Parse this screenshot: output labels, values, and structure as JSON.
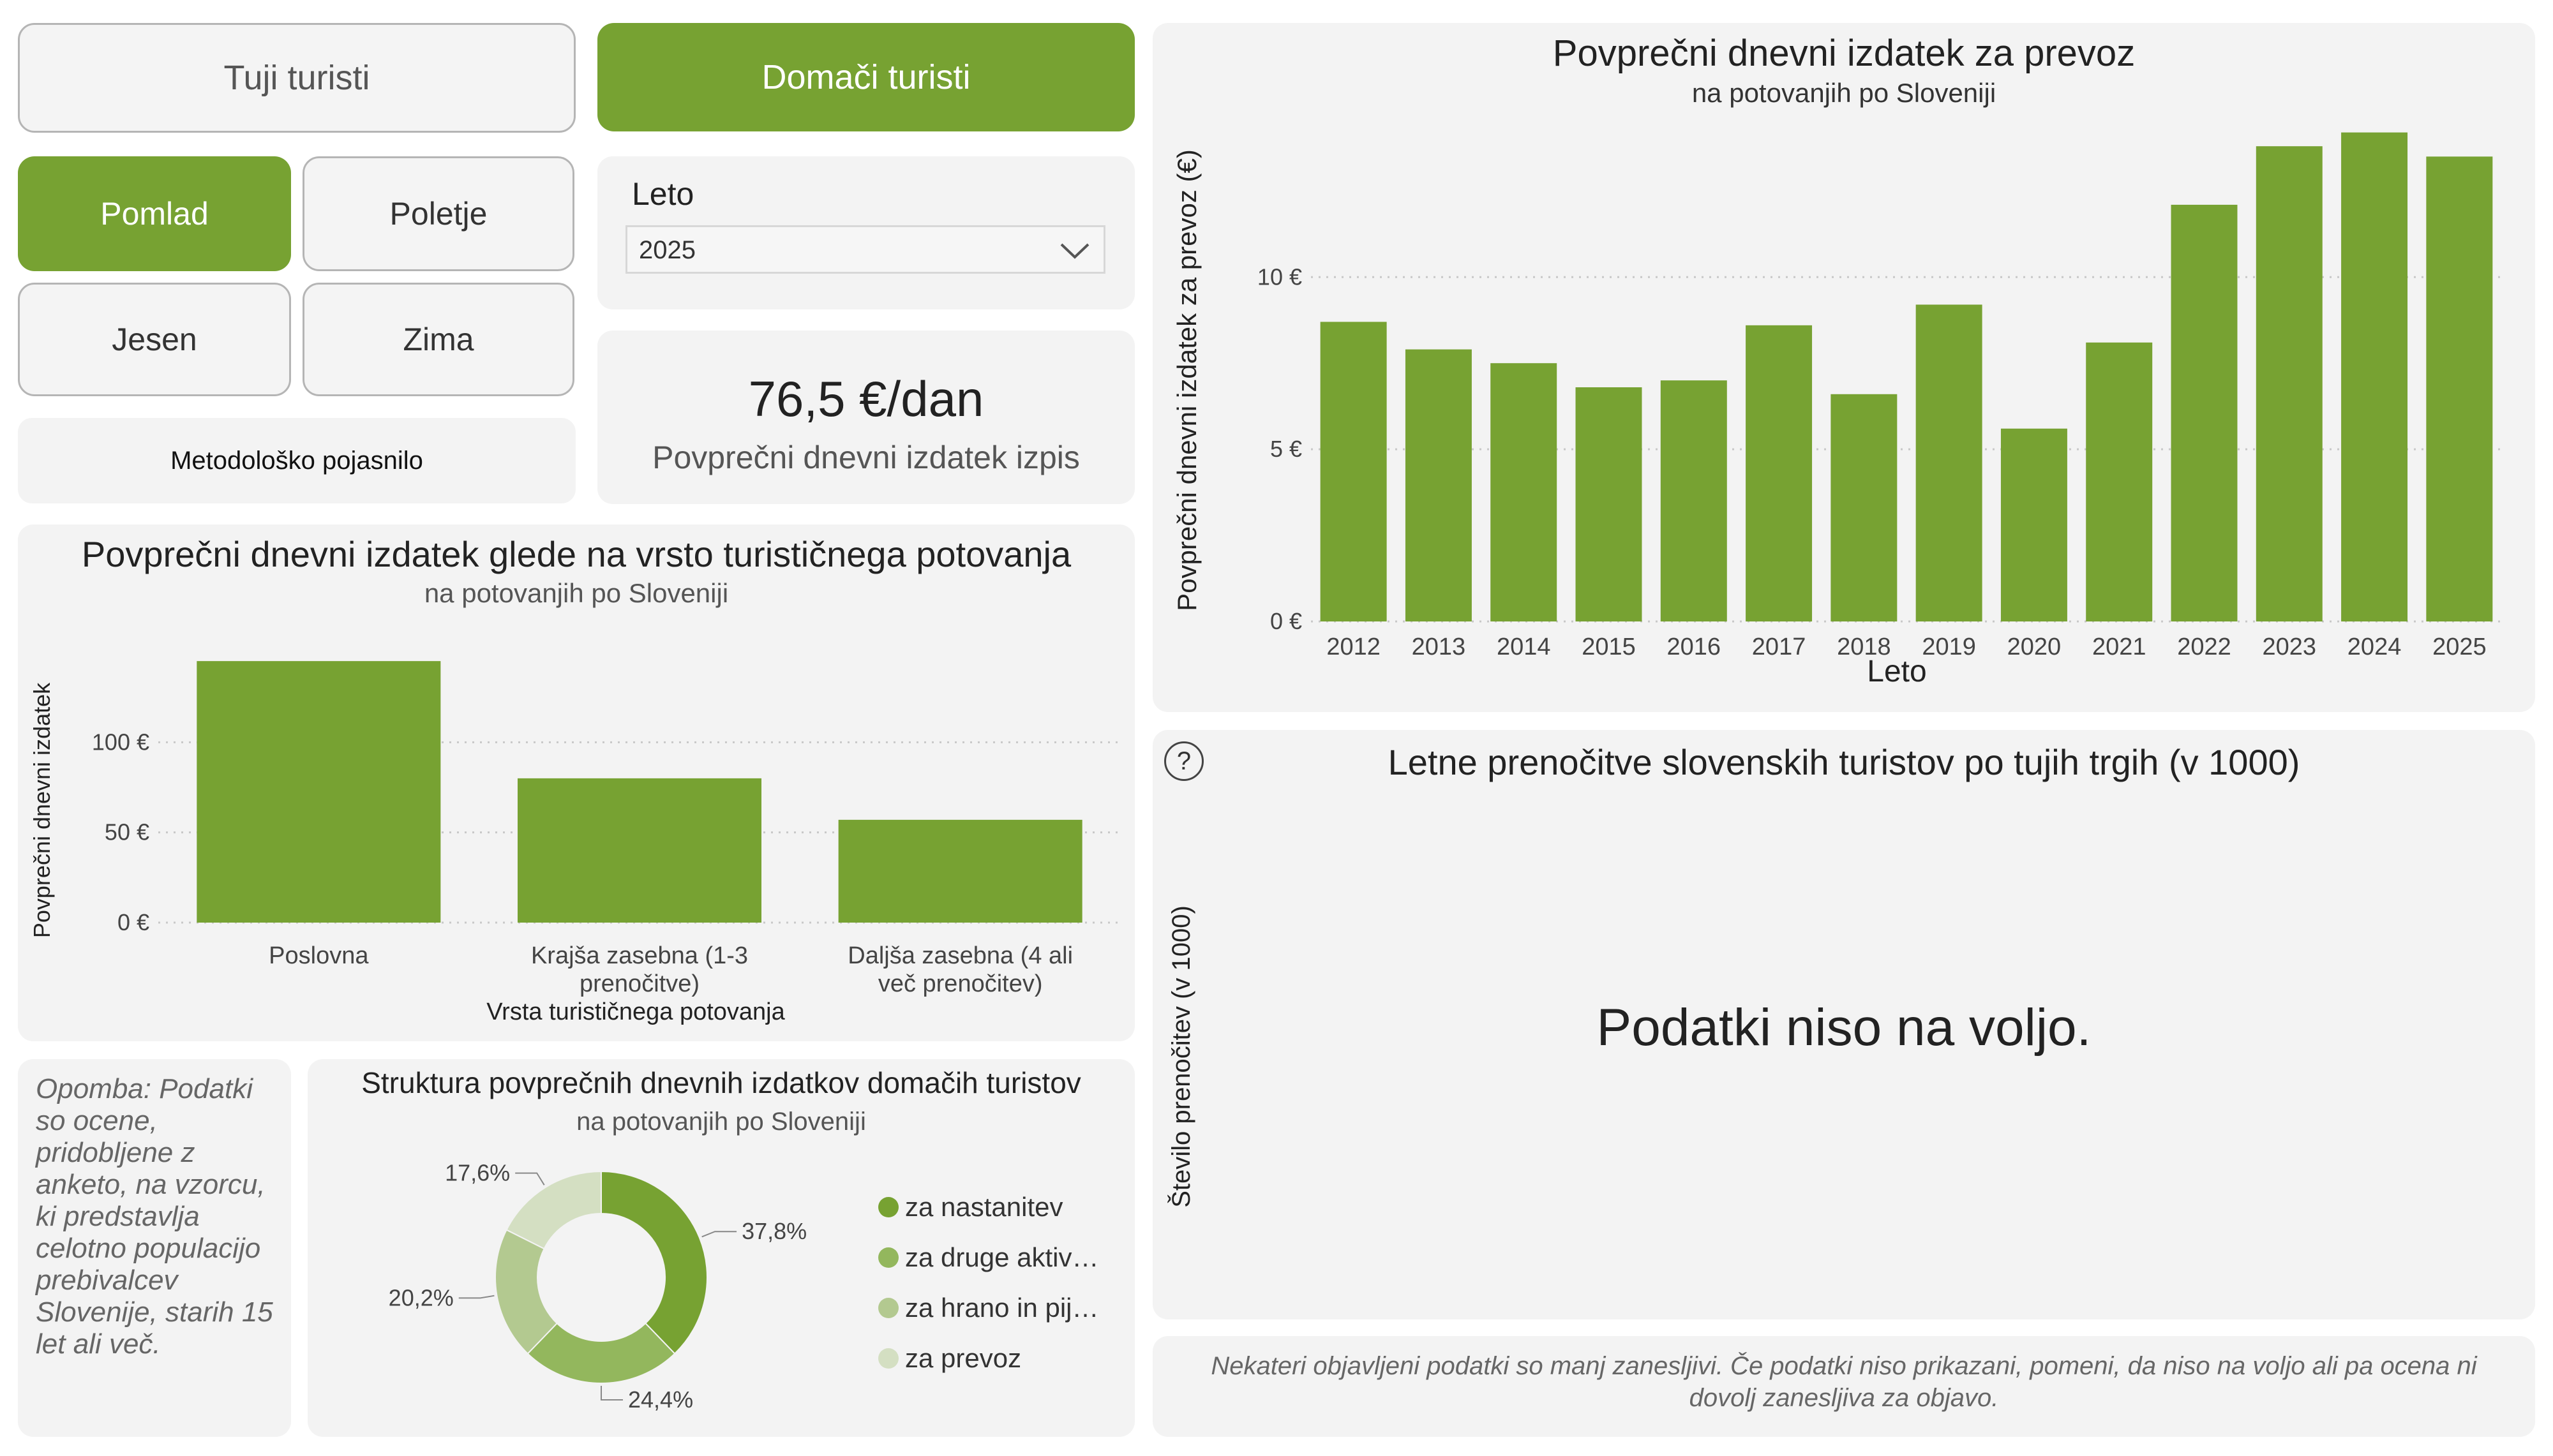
{
  "buttons": {
    "tuji": "Tuji turisti",
    "domaci": "Domači turisti",
    "pomlad": "Pomlad",
    "poletje": "Poletje",
    "jesen": "Jesen",
    "zima": "Zima",
    "metodolosko": "Metodološko pojasnilo"
  },
  "year_filter": {
    "label": "Leto",
    "selected": "2025"
  },
  "kpi": {
    "value": "76,5 €/dan",
    "label": "Povprečni dnevni izdatek izpis"
  },
  "note": "Opomba: Podatki so ocene, pridobljene z anketo, na vzorcu, ki predstavlja celotno populacijo prebivalcev Slovenije, starih 15 let ali več.",
  "foreign_chart": {
    "title": "Letne prenočitve slovenskih turistov po tujih trgih (v 1000)",
    "ylabel": "Število prenočitev (v 1000)",
    "empty_message": "Podatki niso na voljo.",
    "help_icon": "?"
  },
  "footer_note": "Nekateri objavljeni podatki so manj zanesljivi. Če podatki niso prikazani, pomeni, da niso na voljo ali pa ocena ni dovolj zanesljiva za objavo.",
  "colors": {
    "accent": "#77a232",
    "panel": "#f3f3f3"
  },
  "chart_data": [
    {
      "id": "transport",
      "type": "bar",
      "title": "Povprečni dnevni izdatek za prevoz",
      "subtitle": "na potovanjih po Sloveniji",
      "xlabel": "Leto",
      "ylabel": "Povprečni dnevni izdatek za prevoz (€)",
      "categories": [
        "2012",
        "2013",
        "2014",
        "2015",
        "2016",
        "2017",
        "2018",
        "2019",
        "2020",
        "2021",
        "2022",
        "2023",
        "2024",
        "2025"
      ],
      "values": [
        8.7,
        7.9,
        7.5,
        6.8,
        7.0,
        8.6,
        6.6,
        9.2,
        5.6,
        8.1,
        12.1,
        13.8,
        14.2,
        13.5
      ],
      "yticks": [
        0,
        5,
        10
      ],
      "ytick_labels": [
        "0 €",
        "5 €",
        "10 €"
      ],
      "ylim": [
        0,
        14.6
      ],
      "grid": true,
      "color": "#77a232"
    },
    {
      "id": "trip_type",
      "type": "bar",
      "title": "Povprečni dnevni izdatek glede na vrsto turističnega potovanja",
      "subtitle": "na potovanjih po Sloveniji",
      "xlabel": "Vrsta turističnega potovanja",
      "ylabel": "Povprečni dnevni izdatek",
      "categories": [
        [
          "Poslovna"
        ],
        [
          "Krajša zasebna (1-3",
          "prenočitve)"
        ],
        [
          "Daljša zasebna (4 ali",
          "več prenočitev)"
        ]
      ],
      "values": [
        145,
        80,
        57
      ],
      "yticks": [
        0,
        50,
        100
      ],
      "ytick_labels": [
        "0 €",
        "50 €",
        "100 €"
      ],
      "ylim": [
        0,
        150
      ],
      "grid": true,
      "color": "#77a232"
    },
    {
      "id": "structure",
      "type": "pie",
      "title": "Struktura povprečnih dnevnih izdatkov domačih turistov",
      "subtitle": "na potovanjih po Sloveniji",
      "slices": [
        {
          "label": "za nastanitev",
          "value": 37.8,
          "display": "37,8%",
          "color": "#77a232"
        },
        {
          "label": "za druge aktiv…",
          "value": 24.4,
          "display": "24,4%",
          "color": "#93b75d"
        },
        {
          "label": "za hrano in pij…",
          "value": 20.2,
          "display": "20,2%",
          "color": "#b3c990"
        },
        {
          "label": "za prevoz",
          "value": 17.6,
          "display": "17,6%",
          "color": "#d4dfc2"
        }
      ]
    }
  ]
}
